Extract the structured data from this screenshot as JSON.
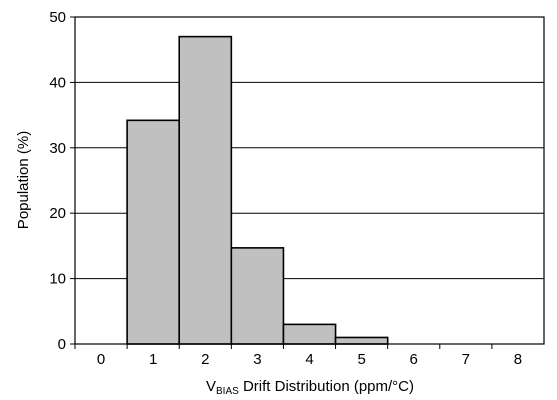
{
  "chart_data": {
    "type": "bar",
    "categories": [
      "0",
      "1",
      "2",
      "3",
      "4",
      "5",
      "6",
      "7",
      "8"
    ],
    "values": [
      0,
      34.2,
      47,
      14.7,
      3,
      1,
      0,
      0,
      0
    ],
    "ylim": [
      0,
      50
    ],
    "yticks": [
      0,
      10,
      20,
      30,
      40,
      50
    ],
    "ylabel": "Population (%)",
    "xlabel_main": "V",
    "xlabel_sub": "BIAS",
    "xlabel_rest": " Drift Distribution (ppm/°C)",
    "grid": true,
    "bar_color": "#c0c0c0"
  }
}
